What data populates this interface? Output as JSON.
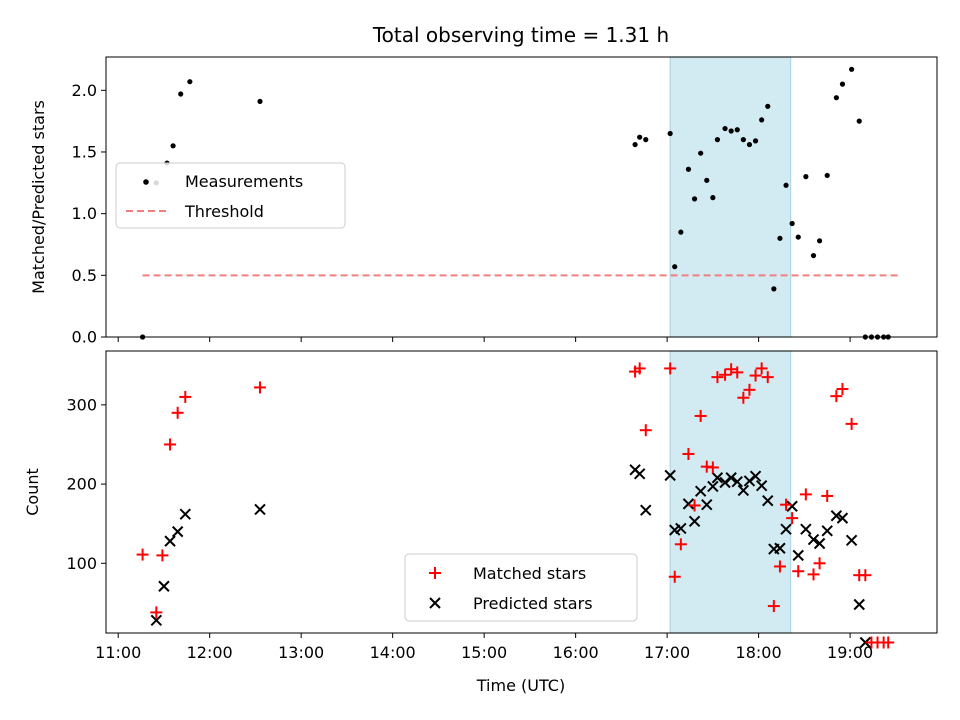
{
  "figure": {
    "title": "Total observing time = 1.31 h"
  },
  "chart_data": [
    {
      "type": "scatter",
      "title": "Total observing time = 1.31 h",
      "xlabel": "",
      "ylabel": "Matched/Predicted stars",
      "xlim": [
        "10:52",
        "19:57"
      ],
      "ylim": [
        0,
        2.27
      ],
      "yticks": [
        0.0,
        0.5,
        1.0,
        1.5,
        2.0
      ],
      "ytick_labels": [
        "0.0",
        "0.5",
        "1.0",
        "1.5",
        "2.0"
      ],
      "grid": false,
      "legend_position": "center-left",
      "shaded_interval": {
        "start": "17:02",
        "end": "18:21",
        "color": "#add8e6"
      },
      "series": [
        {
          "name": "Measurements",
          "color": "#000000",
          "marker": "dot",
          "x": [
            "11:16",
            "11:25",
            "11:32",
            "11:36",
            "11:41",
            "11:47",
            "12:33",
            "16:39",
            "16:42",
            "16:46",
            "17:02",
            "17:05",
            "17:09",
            "17:14",
            "17:18",
            "17:22",
            "17:26",
            "17:30",
            "17:33",
            "17:38",
            "17:42",
            "17:46",
            "17:50",
            "17:54",
            "17:58",
            "18:02",
            "18:06",
            "18:10",
            "18:14",
            "18:18",
            "18:22",
            "18:26",
            "18:31",
            "18:36",
            "18:40",
            "18:45",
            "18:51",
            "18:55",
            "19:01",
            "19:06",
            "19:10",
            "19:14",
            "19:18",
            "19:22",
            "19:25"
          ],
          "y": [
            0.0,
            1.25,
            1.41,
            1.55,
            1.97,
            2.07,
            1.91,
            1.56,
            1.62,
            1.6,
            1.65,
            0.57,
            0.85,
            1.36,
            1.12,
            1.49,
            1.27,
            1.13,
            1.6,
            1.69,
            1.67,
            1.68,
            1.6,
            1.56,
            1.59,
            1.76,
            1.87,
            0.39,
            0.8,
            1.23,
            0.92,
            0.81,
            1.3,
            0.66,
            0.78,
            1.31,
            1.94,
            2.05,
            2.17,
            1.75,
            0.0,
            0.0,
            0.0,
            0.0,
            0.0
          ]
        },
        {
          "name": "Threshold",
          "color": "#f08080",
          "style": "dashed",
          "x": [
            "11:16",
            "19:33"
          ],
          "y": [
            0.5,
            0.5
          ]
        }
      ]
    },
    {
      "type": "scatter",
      "title": "",
      "xlabel": "Time (UTC)",
      "ylabel": "Count",
      "xlim": [
        "10:52",
        "19:57"
      ],
      "ylim": [
        12,
        368
      ],
      "yticks": [
        100,
        200,
        300
      ],
      "ytick_labels": [
        "100",
        "200",
        "300"
      ],
      "xticks": [
        "11:00",
        "12:00",
        "13:00",
        "14:00",
        "15:00",
        "16:00",
        "17:00",
        "18:00",
        "19:00"
      ],
      "xtick_labels": [
        "11:00",
        "12:00",
        "13:00",
        "14:00",
        "15:00",
        "16:00",
        "17:00",
        "18:00",
        "19:00"
      ],
      "grid": false,
      "legend_position": "lower-center",
      "shaded_interval": {
        "start": "17:02",
        "end": "18:21",
        "color": "#add8e6"
      },
      "series": [
        {
          "name": "Matched stars",
          "color": "#ff0000",
          "marker": "plus",
          "x": [
            "11:16",
            "11:25",
            "11:29",
            "11:34",
            "11:39",
            "11:44",
            "12:33",
            "16:39",
            "16:42",
            "16:46",
            "17:02",
            "17:05",
            "17:09",
            "17:14",
            "17:18",
            "17:22",
            "17:26",
            "17:30",
            "17:33",
            "17:38",
            "17:42",
            "17:46",
            "17:50",
            "17:54",
            "17:58",
            "18:02",
            "18:06",
            "18:10",
            "18:14",
            "18:18",
            "18:22",
            "18:26",
            "18:31",
            "18:36",
            "18:40",
            "18:45",
            "18:51",
            "18:55",
            "19:01",
            "19:06",
            "19:10",
            "19:14",
            "19:18",
            "19:22",
            "19:25"
          ],
          "y": [
            111,
            38,
            110,
            250,
            290,
            310,
            322,
            342,
            346,
            268,
            346,
            83,
            124,
            238,
            173,
            286,
            222,
            221,
            335,
            338,
            345,
            341,
            309,
            319,
            337,
            346,
            335,
            46,
            96,
            174,
            157,
            90,
            187,
            86,
            100,
            185,
            311,
            320,
            276,
            85,
            85,
            0,
            0,
            0,
            0
          ]
        },
        {
          "name": "Predicted stars",
          "color": "#000000",
          "marker": "x",
          "x": [
            "11:25",
            "11:30",
            "11:34",
            "11:39",
            "11:44",
            "12:33",
            "16:39",
            "16:42",
            "16:46",
            "17:02",
            "17:05",
            "17:09",
            "17:14",
            "17:18",
            "17:22",
            "17:26",
            "17:30",
            "17:33",
            "17:38",
            "17:42",
            "17:46",
            "17:50",
            "17:54",
            "17:58",
            "18:02",
            "18:06",
            "18:10",
            "18:14",
            "18:18",
            "18:22",
            "18:26",
            "18:31",
            "18:36",
            "18:40",
            "18:45",
            "18:51",
            "18:55",
            "19:01",
            "19:06",
            "19:10"
          ],
          "y": [
            28,
            71,
            128,
            140,
            162,
            168,
            218,
            213,
            167,
            211,
            142,
            144,
            175,
            153,
            191,
            174,
            197,
            208,
            202,
            208,
            203,
            192,
            204,
            210,
            198,
            179,
            118,
            119,
            143,
            172,
            110,
            143,
            130,
            125,
            141,
            160,
            157,
            129,
            48,
            0
          ]
        }
      ]
    }
  ]
}
